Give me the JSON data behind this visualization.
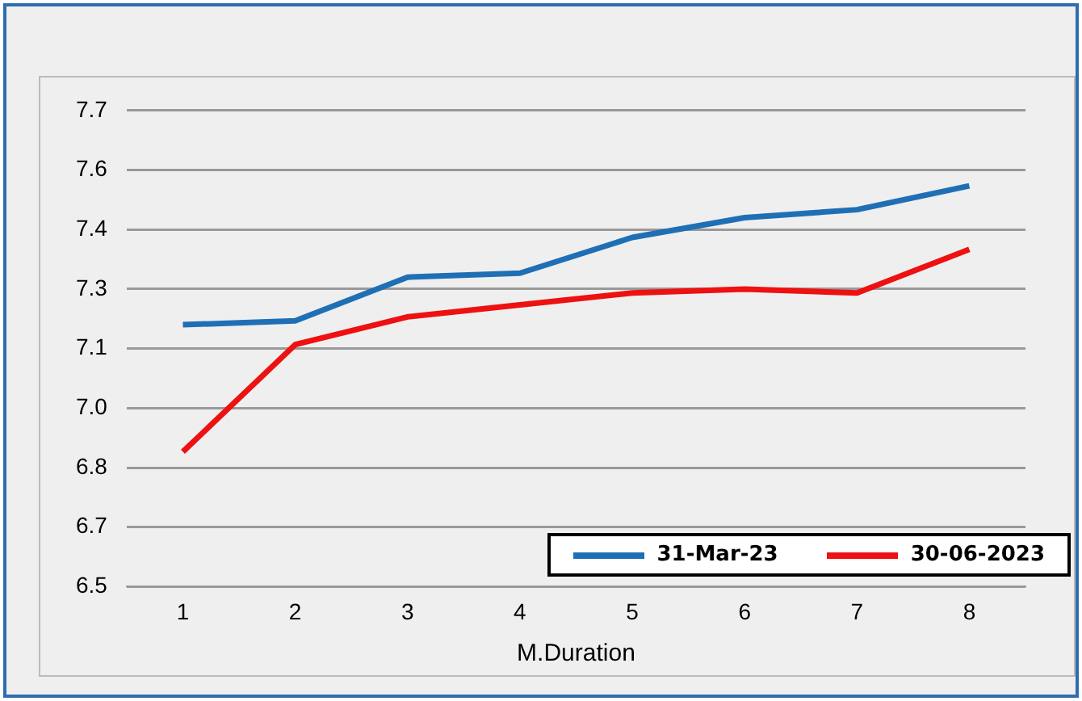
{
  "chart_data": {
    "type": "line",
    "xlabel": "M.Duration",
    "categories": [
      "1",
      "2",
      "3",
      "4",
      "5",
      "6",
      "7",
      "8"
    ],
    "series": [
      {
        "name": "31-Mar-23",
        "color": "#1f6fb5",
        "values": [
          7.16,
          7.17,
          7.28,
          7.29,
          7.38,
          7.43,
          7.45,
          7.51
        ]
      },
      {
        "name": "30-06-2023",
        "color": "#ee1111",
        "values": [
          6.84,
          7.11,
          7.18,
          7.21,
          7.24,
          7.25,
          7.24,
          7.35
        ]
      }
    ],
    "ylim": [
      6.5,
      7.7
    ],
    "yticks": [
      {
        "value": 6.5,
        "label": "6.5"
      },
      {
        "value": 6.65,
        "label": "6.7"
      },
      {
        "value": 6.8,
        "label": "6.8"
      },
      {
        "value": 6.95,
        "label": "7.0"
      },
      {
        "value": 7.1,
        "label": "7.1"
      },
      {
        "value": 7.25,
        "label": "7.3"
      },
      {
        "value": 7.4,
        "label": "7.4"
      },
      {
        "value": 7.55,
        "label": "7.6"
      },
      {
        "value": 7.7,
        "label": "7.7"
      }
    ],
    "grid": "y",
    "legend": "bottom right",
    "marker": "none",
    "line_style": "solid"
  }
}
